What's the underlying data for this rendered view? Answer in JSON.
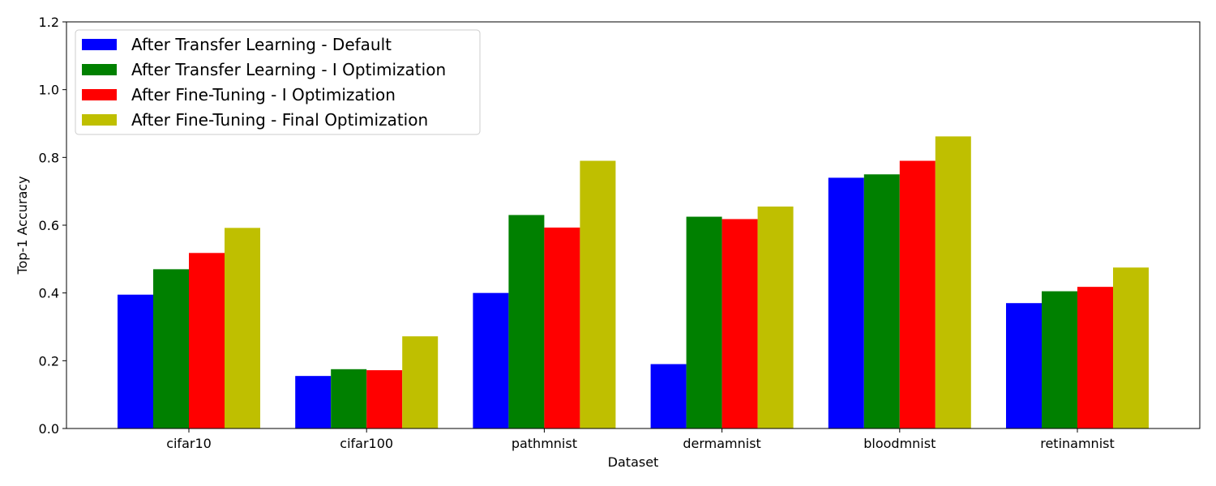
{
  "chart_data": {
    "type": "bar",
    "title": "",
    "xlabel": "Dataset",
    "ylabel": "Top-1 Accuracy",
    "ylim": [
      0,
      1.2
    ],
    "yticks": [
      "0.0",
      "0.2",
      "0.4",
      "0.6",
      "0.8",
      "1.0",
      "1.2"
    ],
    "categories": [
      "cifar10",
      "cifar100",
      "pathmnist",
      "dermamnist",
      "bloodmnist",
      "retinamnist"
    ],
    "series": [
      {
        "name": "After Transfer Learning - Default",
        "color": "#0000ff",
        "values": [
          0.395,
          0.155,
          0.4,
          0.19,
          0.74,
          0.37
        ]
      },
      {
        "name": "After Transfer Learning - I Optimization",
        "color": "#008000",
        "values": [
          0.47,
          0.175,
          0.63,
          0.625,
          0.75,
          0.405
        ]
      },
      {
        "name": "After Fine-Tuning - I Optimization",
        "color": "#ff0000",
        "values": [
          0.518,
          0.172,
          0.593,
          0.618,
          0.79,
          0.418
        ]
      },
      {
        "name": "After Fine-Tuning - Final Optimization",
        "color": "#bfbf00",
        "values": [
          0.592,
          0.272,
          0.79,
          0.655,
          0.862,
          0.475
        ]
      }
    ],
    "grid": false,
    "legend_position": "top-left"
  }
}
